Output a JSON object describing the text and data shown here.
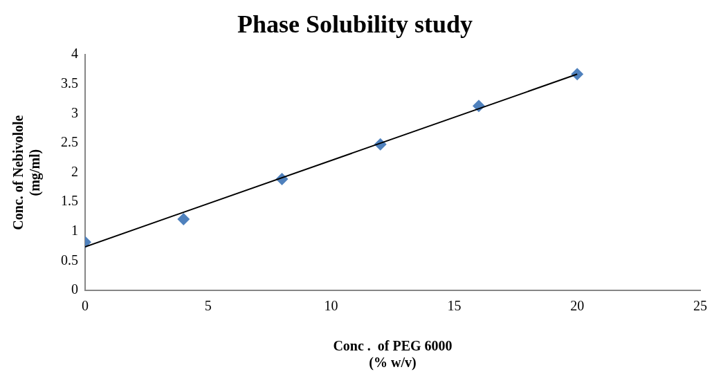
{
  "chart_data": {
    "type": "scatter",
    "title": "Phase Solubility study",
    "xlabel": "Conc .  of PEG 6000\n(% w/v)",
    "ylabel": "Conc. of Nebivolole\n(mg/ml)",
    "x": [
      0,
      4,
      8,
      12,
      16,
      20
    ],
    "series": [
      {
        "color": "#4f81bd",
        "values": [
          0.82,
          1.21,
          1.89,
          2.48,
          3.13,
          3.67
        ],
        "marker": "diamond"
      },
      {
        "type": "line",
        "color": "#000000",
        "x": [
          0,
          20
        ],
        "values": [
          0.74,
          3.67
        ],
        "marker": "none"
      }
    ],
    "xlim": [
      0,
      25
    ],
    "xticks": [
      0,
      5,
      10,
      15,
      20,
      25
    ],
    "ylim": [
      0,
      4
    ],
    "yticks": [
      0,
      0.5,
      1,
      1.5,
      2,
      2.5,
      3,
      3.5,
      4
    ],
    "grid": false,
    "legend": false
  }
}
